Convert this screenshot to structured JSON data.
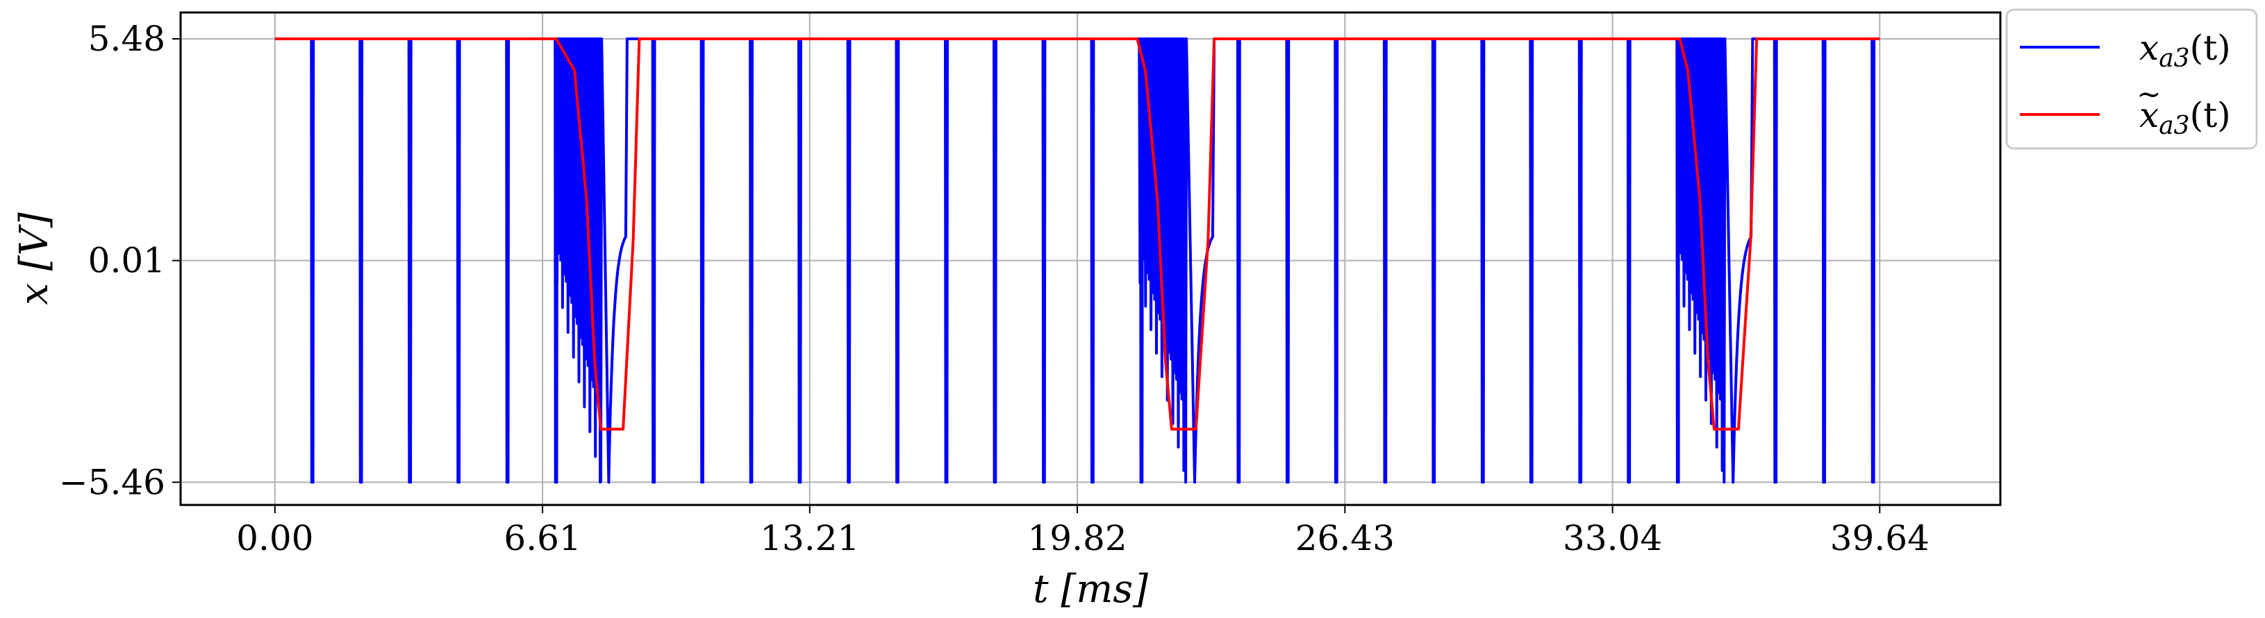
{
  "chart_data": {
    "type": "line",
    "xlabel": "t [ms]",
    "ylabel": "x [V]",
    "xlim": [
      -2.33,
      42.62
    ],
    "ylim": [
      -6.02,
      6.13
    ],
    "xticks": [
      "0.00",
      "6.61",
      "13.21",
      "19.82",
      "26.43",
      "33.04",
      "39.64"
    ],
    "xtick_values": [
      0.0,
      6.61,
      13.21,
      19.82,
      26.43,
      33.04,
      39.64
    ],
    "yticks": [
      "5.48",
      "0.01",
      "−5.46"
    ],
    "ytick_values": [
      5.48,
      0.01,
      -5.46
    ],
    "grid": true,
    "legend_position": "outside-top-right",
    "series": [
      {
        "name": "x_a3(t)",
        "legend_label": "x_a3(t)",
        "color": "#0000ff",
        "description": "square-like PWM signal: high level 5.48 V with narrow dips to -5.46 V about every 1.2 ms; dense high-frequency switching around 6.9-8.7 ms, 21.3-23.2 ms and 34.6-36.5 ms followed by an exponential recovery from -5.46 V",
        "high": 5.48,
        "low": -5.46,
        "pulse_times": [
          0.91,
          2.11,
          3.32,
          4.52,
          5.73,
          6.93,
          9.34,
          10.54,
          11.75,
          12.95,
          14.16,
          15.36,
          16.57,
          17.77,
          18.98,
          20.18,
          21.39,
          23.79,
          25.0,
          26.2,
          27.41,
          28.61,
          29.82,
          31.02,
          32.23,
          33.43,
          34.64,
          37.05,
          38.25,
          39.46
        ],
        "burst_intervals": [
          [
            6.95,
            8.7
          ],
          [
            21.35,
            23.2
          ],
          [
            34.65,
            36.5
          ]
        ]
      },
      {
        "name": "x~_a3(t)",
        "legend_label": "x~_a3(t)",
        "color": "#ff0000",
        "x": [
          0.0,
          6.95,
          7.4,
          7.7,
          7.9,
          8.05,
          8.2,
          8.6,
          8.85,
          9.0,
          21.3,
          21.5,
          21.8,
          22.0,
          22.15,
          22.3,
          22.75,
          23.05,
          23.2,
          34.7,
          34.9,
          35.2,
          35.4,
          35.55,
          35.7,
          36.15,
          36.45,
          36.6,
          39.64
        ],
        "y": [
          5.48,
          5.48,
          4.7,
          1.5,
          -2.5,
          -4.15,
          -4.15,
          -4.15,
          0.5,
          5.48,
          5.48,
          4.7,
          1.5,
          -2.5,
          -4.15,
          -4.15,
          -4.15,
          0.5,
          5.48,
          5.48,
          4.7,
          1.5,
          -2.5,
          -4.15,
          -4.15,
          -4.15,
          0.5,
          5.48,
          5.48
        ]
      }
    ]
  },
  "legend": {
    "items": [
      {
        "label_main": "x",
        "label_sub": "a3",
        "label_tail": "(t)",
        "tilde": false,
        "color": "#0000ff"
      },
      {
        "label_main": "x",
        "label_sub": "a3",
        "label_tail": "(t)",
        "tilde": true,
        "color": "#ff0000"
      }
    ]
  }
}
